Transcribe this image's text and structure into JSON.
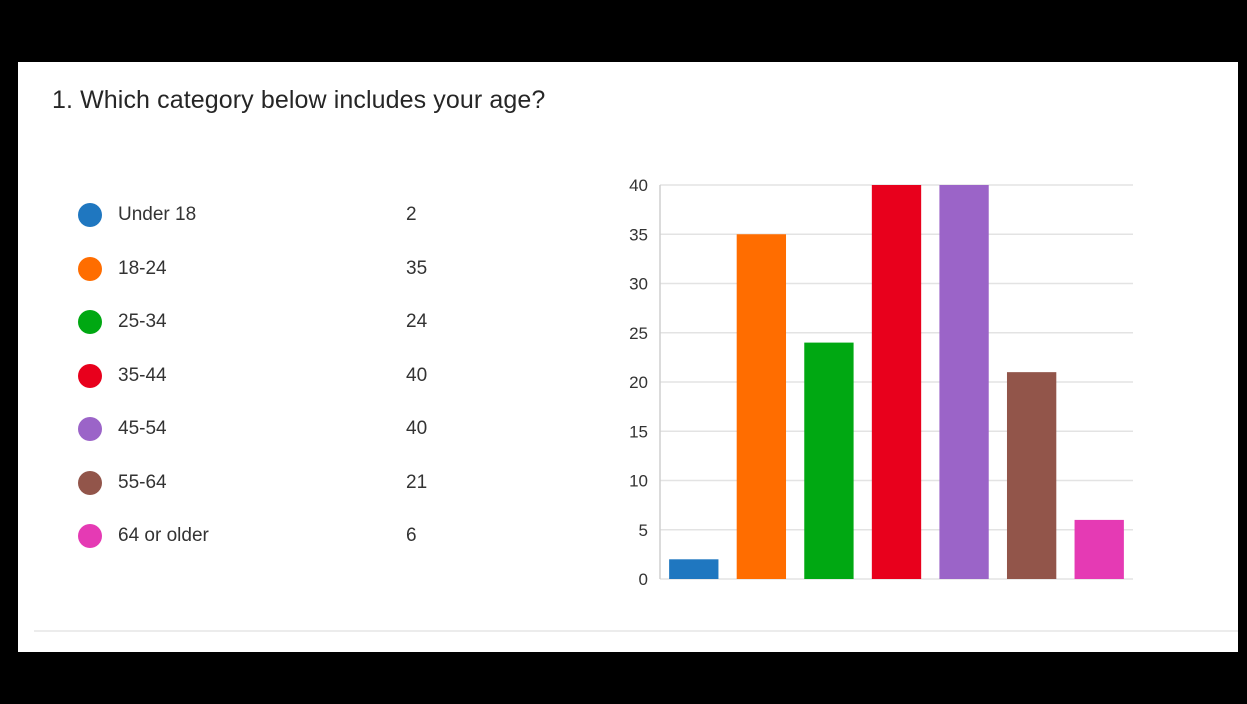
{
  "question": {
    "title": "1.  Which category below includes your age?"
  },
  "legend": [
    {
      "label": "Under 18",
      "count": "2",
      "color": "#1f77c0"
    },
    {
      "label": "18-24",
      "count": "35",
      "color": "#ff6d00"
    },
    {
      "label": "25-34",
      "count": "24",
      "color": "#00a812"
    },
    {
      "label": "35-44",
      "count": "40",
      "color": "#e8001c"
    },
    {
      "label": "45-54",
      "count": "40",
      "color": "#9b64c8"
    },
    {
      "label": "55-64",
      "count": "21",
      "color": "#92554a"
    },
    {
      "label": "64 or older",
      "count": "6",
      "color": "#e53ab4"
    }
  ],
  "chart_data": {
    "type": "bar",
    "categories": [
      "Under 18",
      "18-24",
      "25-34",
      "35-44",
      "45-54",
      "55-64",
      "64 or older"
    ],
    "values": [
      2,
      35,
      24,
      40,
      40,
      21,
      6
    ],
    "colors": [
      "#1f77c0",
      "#ff6d00",
      "#00a812",
      "#e8001c",
      "#9b64c8",
      "#92554a",
      "#e53ab4"
    ],
    "ylim": [
      0,
      40
    ],
    "yticks": [
      0,
      5,
      10,
      15,
      20,
      25,
      30,
      35,
      40
    ],
    "grid": true,
    "legend": "left"
  }
}
